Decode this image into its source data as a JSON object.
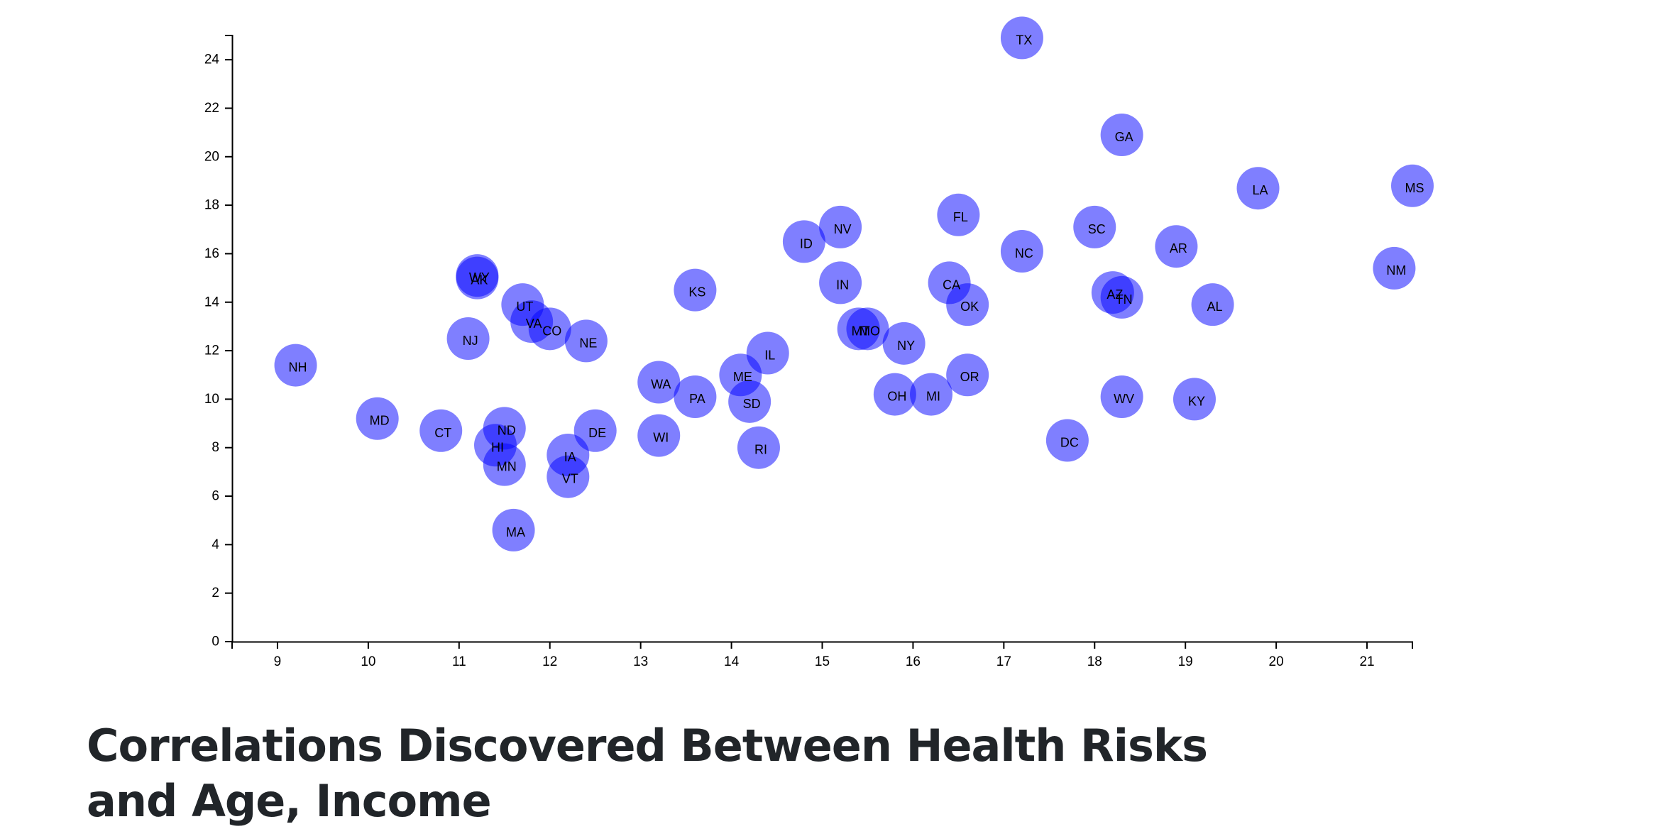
{
  "heading": "Correlations Discovered Between Health Risks and Age, Income",
  "colors": {
    "point": "#0000ff",
    "axis": "#000000",
    "heading": "#212529"
  },
  "chart_data": {
    "type": "scatter",
    "title": "",
    "xlabel": "",
    "ylabel": "",
    "xlim": [
      8.5,
      21.5
    ],
    "ylim": [
      0,
      25
    ],
    "x_ticks": [
      9,
      10,
      11,
      12,
      13,
      14,
      15,
      16,
      17,
      18,
      19,
      20,
      21
    ],
    "y_ticks": [
      0,
      2,
      4,
      6,
      8,
      10,
      12,
      14,
      16,
      18,
      20,
      22,
      24
    ],
    "grid": false,
    "points": [
      {
        "label": "TX",
        "x": 17.2,
        "y": 24.9
      },
      {
        "label": "GA",
        "x": 18.3,
        "y": 20.9
      },
      {
        "label": "LA",
        "x": 19.8,
        "y": 18.7
      },
      {
        "label": "MS",
        "x": 21.5,
        "y": 18.8
      },
      {
        "label": "FL",
        "x": 16.5,
        "y": 17.6
      },
      {
        "label": "NV",
        "x": 15.2,
        "y": 17.1
      },
      {
        "label": "SC",
        "x": 18.0,
        "y": 17.1
      },
      {
        "label": "ID",
        "x": 14.8,
        "y": 16.5
      },
      {
        "label": "AR",
        "x": 18.9,
        "y": 16.3
      },
      {
        "label": "NC",
        "x": 17.2,
        "y": 16.1
      },
      {
        "label": "NM",
        "x": 21.3,
        "y": 15.4
      },
      {
        "label": "WY",
        "x": 11.2,
        "y": 15.1
      },
      {
        "label": "AK",
        "x": 11.2,
        "y": 15.0
      },
      {
        "label": "IN",
        "x": 15.2,
        "y": 14.8
      },
      {
        "label": "CA",
        "x": 16.4,
        "y": 14.8
      },
      {
        "label": "KS",
        "x": 13.6,
        "y": 14.5
      },
      {
        "label": "AZ",
        "x": 18.2,
        "y": 14.4
      },
      {
        "label": "TN",
        "x": 18.3,
        "y": 14.2
      },
      {
        "label": "OK",
        "x": 16.6,
        "y": 13.9
      },
      {
        "label": "AL",
        "x": 19.3,
        "y": 13.9
      },
      {
        "label": "UT",
        "x": 11.7,
        "y": 13.9
      },
      {
        "label": "VA",
        "x": 11.8,
        "y": 13.2
      },
      {
        "label": "CO",
        "x": 12.0,
        "y": 12.9
      },
      {
        "label": "MT",
        "x": 15.4,
        "y": 12.9
      },
      {
        "label": "MO",
        "x": 15.5,
        "y": 12.9
      },
      {
        "label": "NJ",
        "x": 11.1,
        "y": 12.5
      },
      {
        "label": "NE",
        "x": 12.4,
        "y": 12.4
      },
      {
        "label": "NY",
        "x": 15.9,
        "y": 12.3
      },
      {
        "label": "IL",
        "x": 14.4,
        "y": 11.9
      },
      {
        "label": "NH",
        "x": 9.2,
        "y": 11.4
      },
      {
        "label": "ME",
        "x": 14.1,
        "y": 11.0
      },
      {
        "label": "OR",
        "x": 16.6,
        "y": 11.0
      },
      {
        "label": "WA",
        "x": 13.2,
        "y": 10.7
      },
      {
        "label": "OH",
        "x": 15.8,
        "y": 10.2
      },
      {
        "label": "MI",
        "x": 16.2,
        "y": 10.2
      },
      {
        "label": "WV",
        "x": 18.3,
        "y": 10.1
      },
      {
        "label": "PA",
        "x": 13.6,
        "y": 10.1
      },
      {
        "label": "KY",
        "x": 19.1,
        "y": 10.0
      },
      {
        "label": "SD",
        "x": 14.2,
        "y": 9.9
      },
      {
        "label": "MD",
        "x": 10.1,
        "y": 9.2
      },
      {
        "label": "ND",
        "x": 11.5,
        "y": 8.8
      },
      {
        "label": "CT",
        "x": 10.8,
        "y": 8.7
      },
      {
        "label": "DE",
        "x": 12.5,
        "y": 8.7
      },
      {
        "label": "WI",
        "x": 13.2,
        "y": 8.5
      },
      {
        "label": "DC",
        "x": 17.7,
        "y": 8.3
      },
      {
        "label": "HI",
        "x": 11.4,
        "y": 8.1
      },
      {
        "label": "RI",
        "x": 14.3,
        "y": 8.0
      },
      {
        "label": "IA",
        "x": 12.2,
        "y": 7.7
      },
      {
        "label": "MN",
        "x": 11.5,
        "y": 7.3
      },
      {
        "label": "VT",
        "x": 12.2,
        "y": 6.8
      },
      {
        "label": "MA",
        "x": 11.6,
        "y": 4.6
      }
    ]
  }
}
